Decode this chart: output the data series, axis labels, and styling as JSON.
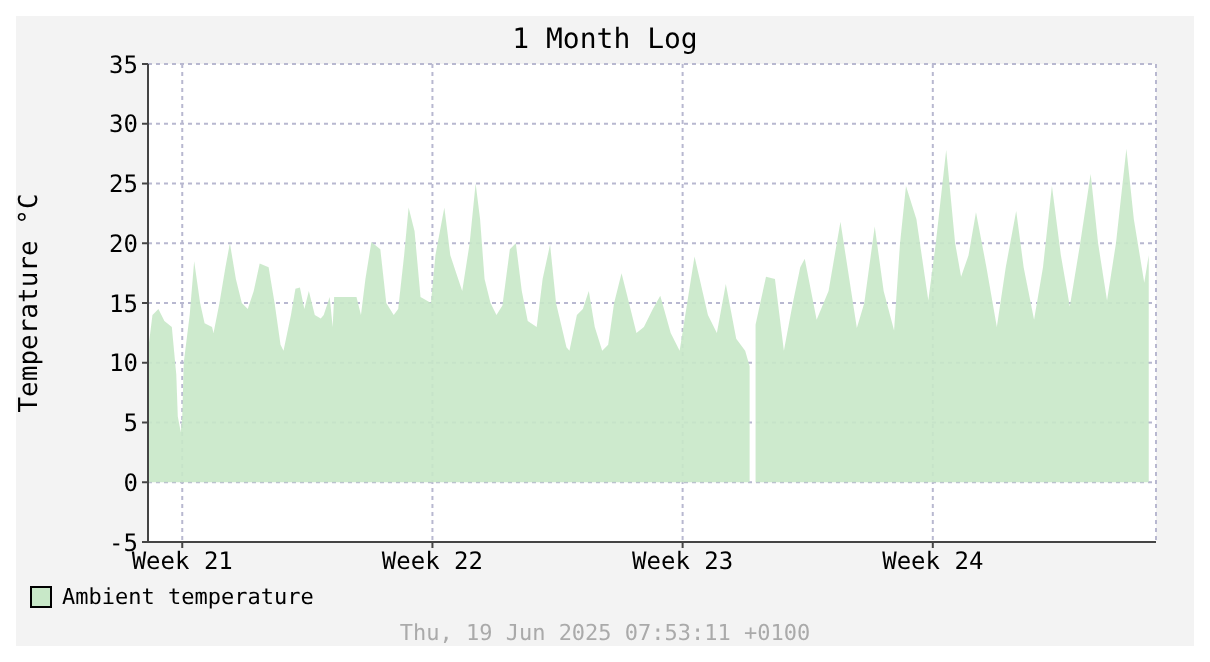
{
  "chart_data": {
    "type": "area",
    "title": "1 Month Log",
    "ylabel": "Temperature °C",
    "annotations": [
      "Thu, 19 Jun 2025 07:53:11 +0100"
    ],
    "x": [
      "2025-05-22T03:00",
      "2025-05-22T06:00",
      "2025-05-22T10:00",
      "2025-05-22T14:00",
      "2025-05-22T19:00",
      "2025-05-22T22:00",
      "2025-05-22T23:00",
      "2025-05-23T01:00",
      "2025-05-23T02:00",
      "2025-05-23T03:00",
      "2025-05-23T07:00",
      "2025-05-23T10:00",
      "2025-05-23T14:00",
      "2025-05-23T17:00",
      "2025-05-23T22:00",
      "2025-05-23T23:00",
      "2025-05-24T03:00",
      "2025-05-24T07:00",
      "2025-05-24T10:00",
      "2025-05-24T14:00",
      "2025-05-24T18:00",
      "2025-05-24T22:00",
      "2025-05-25T02:00",
      "2025-05-25T06:00",
      "2025-05-25T12:00",
      "2025-05-25T16:00",
      "2025-05-25T20:00",
      "2025-05-25T22:00",
      "2025-05-26T03:00",
      "2025-05-26T06:00",
      "2025-05-26T09:00",
      "2025-05-26T12:00",
      "2025-05-26T15:00",
      "2025-05-26T19:00",
      "2025-05-26T23:00",
      "2025-05-27T01:00",
      "2025-05-27T05:00",
      "2025-05-27T07:00",
      "2025-05-27T08:00",
      "2025-05-27T15:00",
      "2025-05-27T23:00",
      "2025-05-28T02:00",
      "2025-05-28T05:00",
      "2025-05-28T09:00",
      "2025-05-28T15:00",
      "2025-05-28T19:00",
      "2025-05-29T00:00",
      "2025-05-29T03:00",
      "2025-05-29T07:00",
      "2025-05-29T10:00",
      "2025-05-29T14:00",
      "2025-05-29T18:00",
      "2025-05-30T01:00",
      "2025-05-30T04:00",
      "2025-05-30T10:00",
      "2025-05-30T14:00",
      "2025-05-30T18:00",
      "2025-05-30T22:00",
      "2025-05-31T03:00",
      "2025-05-31T07:00",
      "2025-05-31T10:00",
      "2025-05-31T13:00",
      "2025-05-31T17:00",
      "2025-05-31T21:00",
      "2025-06-01T01:00",
      "2025-06-01T06:00",
      "2025-06-01T10:00",
      "2025-06-01T14:00",
      "2025-06-01T18:00",
      "2025-06-02T00:00",
      "2025-06-02T04:00",
      "2025-06-02T09:00",
      "2025-06-02T13:00",
      "2025-06-02T20:00",
      "2025-06-02T22:00",
      "2025-06-03T03:00",
      "2025-06-03T07:00",
      "2025-06-03T11:00",
      "2025-06-03T15:00",
      "2025-06-03T20:00",
      "2025-06-04T00:00",
      "2025-06-04T04:00",
      "2025-06-04T09:00",
      "2025-06-04T14:00",
      "2025-06-04T19:00",
      "2025-06-05T00:00",
      "2025-06-05T06:00",
      "2025-06-05T11:00",
      "2025-06-05T18:00",
      "2025-06-06T00:00",
      "2025-06-06T10:00",
      "2025-06-06T19:00",
      "2025-06-07T01:00",
      "2025-06-07T07:00",
      "2025-06-07T14:00",
      "2025-06-07T20:00",
      "2025-06-07T23:00",
      "2025-06-08T02:00",
      "2025-06-08T03:00",
      "2025-06-08T10:00",
      "2025-06-08T16:00",
      "2025-06-08T22:00",
      "2025-06-09T04:00",
      "2025-06-09T09:00",
      "2025-06-09T12:00",
      "2025-06-09T20:00",
      "2025-06-10T04:00",
      "2025-06-10T12:00",
      "2025-06-10T23:00",
      "2025-06-11T04:00",
      "2025-06-11T11:00",
      "2025-06-11T17:00",
      "2025-06-12T00:00",
      "2025-06-12T04:00",
      "2025-06-12T08:00",
      "2025-06-12T15:00",
      "2025-06-12T23:00",
      "2025-06-13T04:00",
      "2025-06-13T11:00",
      "2025-06-13T17:00",
      "2025-06-13T21:00",
      "2025-06-14T02:00",
      "2025-06-14T07:00",
      "2025-06-14T14:00",
      "2025-06-14T21:00",
      "2025-06-15T03:00",
      "2025-06-15T10:00",
      "2025-06-15T15:00",
      "2025-06-15T22:00",
      "2025-06-16T04:00",
      "2025-06-16T10:00",
      "2025-06-16T16:00",
      "2025-06-16T22:00",
      "2025-06-17T05:00",
      "2025-06-17T12:00",
      "2025-06-17T17:00",
      "2025-06-17T23:00",
      "2025-06-18T05:00",
      "2025-06-18T12:00",
      "2025-06-18T17:00",
      "2025-06-19T00:00",
      "2025-06-19T03:00"
    ],
    "series": [
      {
        "name": "Ambient temperature",
        "color": "#c8e8c8",
        "values": [
          11,
          14,
          14.5,
          13.5,
          13,
          9,
          5.5,
          4.2,
          5.5,
          10,
          14,
          18.5,
          15,
          13.3,
          13,
          12.5,
          15,
          18,
          20,
          17,
          15,
          14.5,
          16,
          18.3,
          18,
          15,
          11.5,
          11,
          14,
          16.2,
          16.3,
          14.5,
          16,
          14,
          13.7,
          14,
          15.5,
          13,
          15.5,
          15.5,
          15.5,
          14,
          17,
          20.1,
          19.5,
          15,
          14,
          14.5,
          19,
          23,
          21,
          15.5,
          15,
          19,
          23,
          19,
          17.5,
          16,
          20,
          25,
          22,
          17,
          15,
          14,
          14.8,
          19.5,
          20,
          16,
          13.5,
          13,
          17,
          19.9,
          15,
          11.3,
          11,
          14,
          14.5,
          16,
          13,
          11,
          11.5,
          15,
          17.5,
          15,
          12.5,
          13,
          14.5,
          15.6,
          12.5,
          11,
          18.9,
          14,
          12.5,
          16.6,
          12,
          11,
          9.7,
          null,
          13.2,
          17.2,
          17,
          11,
          15,
          18,
          18.7,
          13.6,
          16,
          21.8,
          12.9,
          15,
          21.4,
          16,
          12.7,
          20,
          24.8,
          22,
          15.2,
          20,
          27.8,
          20,
          17.2,
          19,
          22.6,
          18,
          13,
          18,
          22.7,
          18,
          13.6,
          18,
          24.8,
          19,
          14.7,
          20,
          25.8,
          20,
          15.2,
          20,
          27.9,
          22,
          16.7,
          19
        ]
      }
    ],
    "xlim": [
      "2025-05-22T03:00",
      "2025-06-19T07:53"
    ],
    "xticks": [
      {
        "value": "2025-05-23T02:00",
        "label": "Week 21"
      },
      {
        "value": "2025-05-30T02:00",
        "label": "Week 22"
      },
      {
        "value": "2025-06-06T02:00",
        "label": "Week 23"
      },
      {
        "value": "2025-06-13T02:00",
        "label": "Week 24"
      }
    ],
    "ylim": [
      -5,
      35
    ],
    "yticks": [
      -5,
      0,
      5,
      10,
      15,
      20,
      25,
      30,
      35
    ],
    "grid": true,
    "legend": "bottom left"
  }
}
